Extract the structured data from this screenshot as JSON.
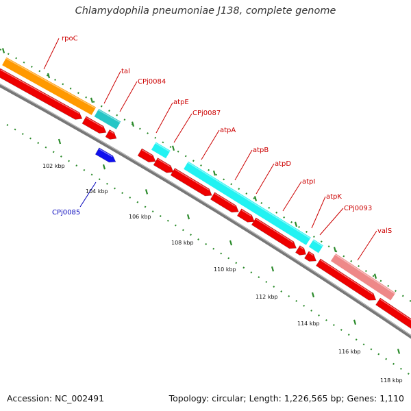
{
  "title": "Chlamydophila pneumoniae J138, complete genome",
  "footer": {
    "accession": "Accession: NC_002491",
    "summary": "Topology: circular; Length: 1,226,565 bp; Genes: 1,110"
  },
  "colors": {
    "cds": "#ee0000",
    "cds_reverse": "#1010ee",
    "orange": "#ff9900",
    "cyan": "#22f2f2",
    "teal": "#26c6c6",
    "pink": "#ee8888",
    "backbone": "#777777",
    "dot": "#2a8a2a",
    "label": "#cc0000",
    "label_reverse": "#0000bb"
  },
  "scale": [
    "102 kbp",
    "104 kbp",
    "106 kbp",
    "108 kbp",
    "110 kbp",
    "112 kbp",
    "114 kbp",
    "116 kbp",
    "118 kbp"
  ],
  "genes": [
    {
      "name": "rpoC",
      "strand": 1,
      "bands": [
        "orange"
      ]
    },
    {
      "name": "tal",
      "strand": 1,
      "bands": [
        "teal"
      ]
    },
    {
      "name": "CPj0084",
      "strand": 1,
      "bands": []
    },
    {
      "name": "CPj0085",
      "strand": -1,
      "bands": []
    },
    {
      "name": "atpE",
      "strand": 1,
      "bands": [
        "cyan"
      ]
    },
    {
      "name": "CPj0087",
      "strand": 1,
      "bands": []
    },
    {
      "name": "atpA",
      "strand": 1,
      "bands": [
        "cyan"
      ]
    },
    {
      "name": "atpB",
      "strand": 1,
      "bands": [
        "cyan"
      ]
    },
    {
      "name": "atpD",
      "strand": 1,
      "bands": [
        "cyan"
      ]
    },
    {
      "name": "atpI",
      "strand": 1,
      "bands": [
        "cyan"
      ]
    },
    {
      "name": "atpK",
      "strand": 1,
      "bands": [
        "cyan"
      ]
    },
    {
      "name": "CPj0093",
      "strand": 1,
      "bands": []
    },
    {
      "name": "valS",
      "strand": 1,
      "bands": [
        "pink"
      ]
    }
  ]
}
